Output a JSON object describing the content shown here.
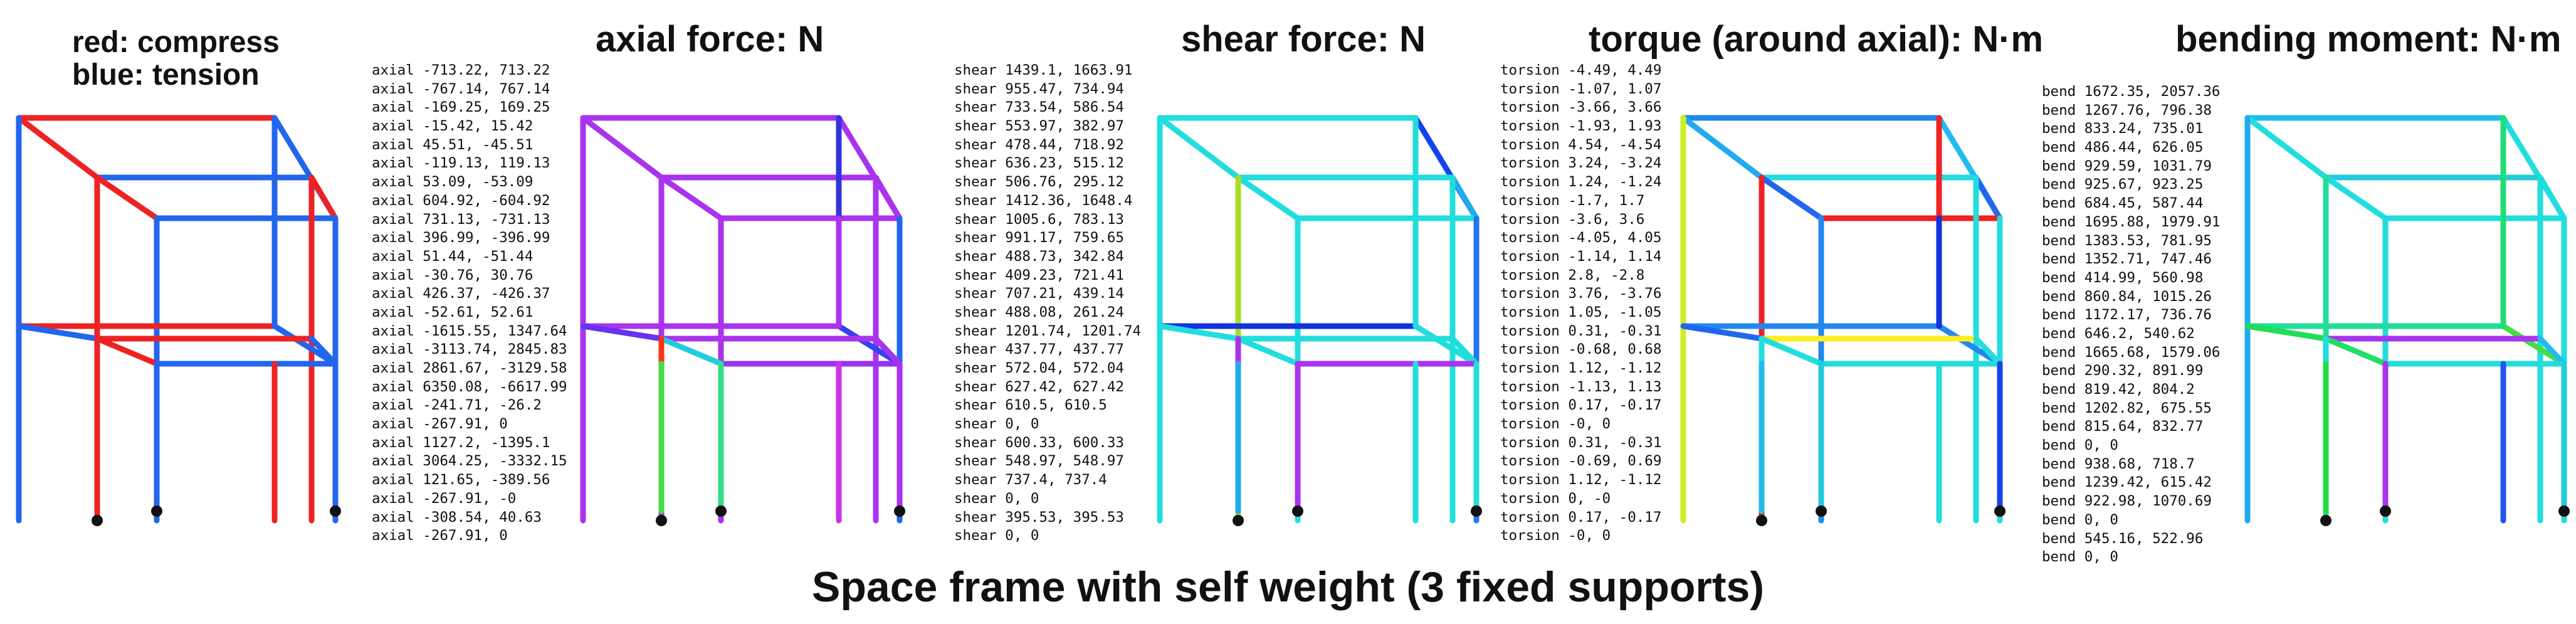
{
  "caption": "Space frame with self weight (3 fixed supports)",
  "legend": {
    "red_label": "red: compress",
    "blue_label": "blue: tension"
  },
  "panels": [
    {
      "id": "sign",
      "title": ""
    },
    {
      "id": "axial",
      "title": "axial force: N"
    },
    {
      "id": "shear",
      "title": "shear force: N"
    },
    {
      "id": "torsion",
      "title": "torque (around axial): N·m"
    },
    {
      "id": "bend",
      "title": "bending moment: N·m"
    }
  ],
  "value_lists": {
    "axial": [
      "axial -713.22, 713.22",
      "axial -767.14, 767.14",
      "axial -169.25, 169.25",
      "axial -15.42, 15.42",
      "axial 45.51, -45.51",
      "axial -119.13, 119.13",
      "axial 53.09, -53.09",
      "axial 604.92, -604.92",
      "axial 731.13, -731.13",
      "axial 396.99, -396.99",
      "axial 51.44, -51.44",
      "axial -30.76, 30.76",
      "axial 426.37, -426.37",
      "axial -52.61, 52.61",
      "axial -1615.55, 1347.64",
      "axial -3113.74, 2845.83",
      "axial 2861.67, -3129.58",
      "axial 6350.08, -6617.99",
      "axial -241.71, -26.2",
      "axial -267.91, 0",
      "axial 1127.2, -1395.1",
      "axial 3064.25, -3332.15",
      "axial 121.65, -389.56",
      "axial -267.91, -0",
      "axial -308.54, 40.63",
      "axial -267.91, 0"
    ],
    "shear": [
      "shear 1439.1, 1663.91",
      "shear 955.47, 734.94",
      "shear 733.54, 586.54",
      "shear 553.97, 382.97",
      "shear 478.44, 718.92",
      "shear 636.23, 515.12",
      "shear 506.76, 295.12",
      "shear 1412.36, 1648.4",
      "shear 1005.6, 783.13",
      "shear 991.17, 759.65",
      "shear 488.73, 342.84",
      "shear 409.23, 721.41",
      "shear 707.21, 439.14",
      "shear 488.08, 261.24",
      "shear 1201.74, 1201.74",
      "shear 437.77, 437.77",
      "shear 572.04, 572.04",
      "shear 627.42, 627.42",
      "shear 610.5, 610.5",
      "shear 0, 0",
      "shear 600.33, 600.33",
      "shear 548.97, 548.97",
      "shear 737.4, 737.4",
      "shear 0, 0",
      "shear 395.53, 395.53",
      "shear 0, 0"
    ],
    "torsion": [
      "torsion -4.49, 4.49",
      "torsion -1.07, 1.07",
      "torsion -3.66, 3.66",
      "torsion -1.93, 1.93",
      "torsion 4.54, -4.54",
      "torsion 3.24, -3.24",
      "torsion 1.24, -1.24",
      "torsion -1.7, 1.7",
      "torsion -3.6, 3.6",
      "torsion -4.05, 4.05",
      "torsion -1.14, 1.14",
      "torsion 2.8, -2.8",
      "torsion 3.76, -3.76",
      "torsion 1.05, -1.05",
      "torsion 0.31, -0.31",
      "torsion -0.68, 0.68",
      "torsion 1.12, -1.12",
      "torsion -1.13, 1.13",
      "torsion 0.17, -0.17",
      "torsion -0, 0",
      "torsion 0.31, -0.31",
      "torsion -0.69, 0.69",
      "torsion 1.12, -1.12",
      "torsion 0, -0",
      "torsion 0.17, -0.17",
      "torsion -0, 0"
    ],
    "bend": [
      "bend 1672.35, 2057.36",
      "bend 1267.76, 796.38",
      "bend 833.24, 735.01",
      "bend 486.44, 626.05",
      "bend 929.59, 1031.79",
      "bend 925.67, 923.25",
      "bend 684.45, 587.44",
      "bend 1695.88, 1979.91",
      "bend 1383.53, 781.95",
      "bend 1352.71, 747.46",
      "bend 414.99, 560.98",
      "bend 860.84, 1015.26",
      "bend 1172.17, 736.76",
      "bend 646.2, 540.62",
      "bend 1665.68, 1579.06",
      "bend 290.32, 891.99",
      "bend 819.42, 804.2",
      "bend 1202.82, 675.55",
      "bend 815.64, 832.77",
      "bend 0, 0",
      "bend 938.68, 718.7",
      "bend 1239.42, 615.42",
      "bend 922.98, 1070.69",
      "bend 0, 0",
      "bend 545.16, 522.96",
      "bend 0, 0"
    ]
  },
  "colors": {
    "compression": "#ee2222",
    "tension": "#2266ee",
    "support": "#111111",
    "palettes": {
      "sign": [
        "#ee2222",
        "#2266ee",
        "#ee2222",
        "#2266ee",
        "#ee2222",
        "#2266ee",
        "#ee2222",
        "#2266ee",
        "#ee2222",
        "#2266ee",
        "#2266ee",
        "#ee2222",
        "#2266ee",
        "#ee2222",
        "#2266ee",
        "#2266ee",
        "#ee2222",
        "#2266ee",
        "#2266ee",
        "#ee2222",
        "#2266ee",
        "#ee2222",
        "#ee2222",
        "#2266ee",
        "#2266ee",
        "#ee2222"
      ],
      "axial": [
        "#aa33ee",
        "#aa33ee",
        "#aa33ee",
        "#aa33ee",
        "#aa33ee",
        "#aa33ee",
        "#aa33ee",
        "#aa33ee",
        "#aa33ee",
        "#aa33ee",
        "#3333dd",
        "#aa33ee",
        "#2266ee",
        "#aa33ee",
        "#3344ee",
        "#6633ee",
        "#aa33ee",
        "#aa33ee",
        "#9933ee",
        "#22ccdd",
        "#aa33ee",
        "#cc33ee",
        "#ff3311",
        "#33dd88",
        "#aa33ee",
        "#44dd44"
      ],
      "shear": [
        "#22dddd",
        "#1144ee",
        "#22dddd",
        "#22dddd",
        "#22aaee",
        "#22dddd",
        "#22dddd",
        "#22dddd",
        "#aadd22",
        "#22dddd",
        "#22dddd",
        "#22dddd",
        "#2277ee",
        "#1133dd",
        "#22dddd",
        "#22dddd",
        "#22dddd",
        "#22dddd",
        "#aa33ee",
        "#22dddd",
        "#22dddd",
        "#22dddd",
        "#aa33ee",
        "#aa33ee",
        "#22dddd",
        "#22aaee"
      ],
      "torsion": [
        "#2288ee",
        "#22bbee",
        "#22aaee",
        "#22dddd",
        "#2266ee",
        "#ee2222",
        "#2266ee",
        "#ccee22",
        "#ee2222",
        "#2288ee",
        "#ee2222",
        "#22dddd",
        "#22dddd",
        "#2288ee",
        "#2288ee",
        "#2266ee",
        "#ffee22",
        "#22dddd",
        "#22dddd",
        "#22dddd",
        "#1133dd",
        "#22dddd",
        "#22dddd",
        "#22ccdd",
        "#1144ee",
        "#22bbee"
      ],
      "bend": [
        "#22bbee",
        "#22dddd",
        "#22dddd",
        "#22ccdd",
        "#22dddd",
        "#22dddd",
        "#22dddd",
        "#22aaee",
        "#22dd99",
        "#22dddd",
        "#22dd77",
        "#22dddd",
        "#22dddd",
        "#22dd99",
        "#44dd44",
        "#22dd55",
        "#aa33ee",
        "#22bbee",
        "#22dddd",
        "#22dd66",
        "#22dd77",
        "#2255ee",
        "#22dddd",
        "#aa33ee",
        "#22ccdd",
        "#22dd44"
      ]
    }
  }
}
